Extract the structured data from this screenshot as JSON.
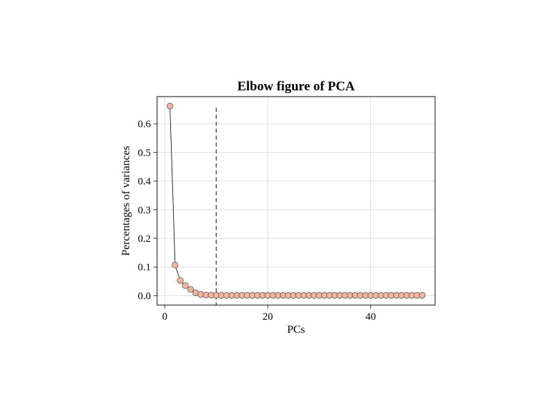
{
  "chart_data": {
    "type": "scatter",
    "title": "Elbow figure of PCA",
    "xlabel": "PCs",
    "ylabel": "Percentages of variances",
    "xlim": [
      -1.5,
      52.5
    ],
    "ylim": [
      -0.033,
      0.695
    ],
    "xticks": [
      0,
      20,
      40
    ],
    "yticks": [
      0.0,
      0.1,
      0.2,
      0.3,
      0.4,
      0.5,
      0.6
    ],
    "ytick_labels": [
      "0.0",
      "0.1",
      "0.2",
      "0.3",
      "0.4",
      "0.5",
      "0.6"
    ],
    "grid": true,
    "vertical_line_x": 10,
    "marker_color": "#f4b6a0",
    "line_color": "#111111",
    "series": [
      {
        "x": [
          1,
          2,
          3,
          4,
          5,
          6,
          7,
          8,
          9,
          10,
          11,
          12,
          13,
          14,
          15,
          16,
          17,
          18,
          19,
          20,
          21,
          22,
          23,
          24,
          25,
          26,
          27,
          28,
          29,
          30,
          31,
          32,
          33,
          34,
          35,
          36,
          37,
          38,
          39,
          40,
          41,
          42,
          43,
          44,
          45,
          46,
          47,
          48,
          49,
          50
        ],
        "values": [
          0.662,
          0.107,
          0.053,
          0.035,
          0.022,
          0.01,
          0.004,
          0.002,
          0.002,
          0.001,
          0.001,
          0.001,
          0.001,
          0.001,
          0.001,
          0.001,
          0.001,
          0.001,
          0.001,
          0.001,
          0.001,
          0.001,
          0.001,
          0.001,
          0.001,
          0.001,
          0.001,
          0.001,
          0.001,
          0.001,
          0.001,
          0.001,
          0.001,
          0.001,
          0.001,
          0.001,
          0.001,
          0.001,
          0.001,
          0.001,
          0.001,
          0.001,
          0.001,
          0.001,
          0.001,
          0.001,
          0.001,
          0.001,
          0.001,
          0.001
        ]
      }
    ]
  }
}
